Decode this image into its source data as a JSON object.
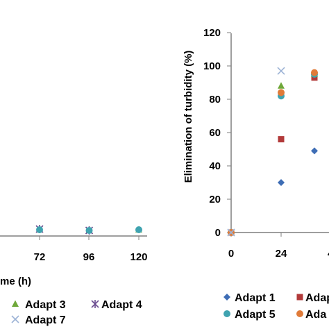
{
  "chart_data": [
    {
      "type": "scatter",
      "xlabel": "me (h)",
      "ylabel": "",
      "x_ticks": [
        "72",
        "96",
        "120"
      ],
      "xlim": [
        -24,
        130
      ],
      "ylim": [
        0,
        120
      ],
      "grid": false,
      "legend_placement": "bottom",
      "legend": [
        {
          "label": "Adapt 3",
          "marker": "triangle",
          "color": "#6fa83a"
        },
        {
          "label": "Adapt 4",
          "marker": "asterisk",
          "color": "#6a4b8f"
        },
        {
          "label": "Adapt 7",
          "marker": "x",
          "color": "#9db3d6"
        }
      ],
      "series": [
        {
          "key": "a3",
          "marker": "triangle",
          "color": "#6fa83a",
          "points": [
            [
              72,
              1
            ],
            [
              96,
              0.5
            ],
            [
              120,
              1
            ]
          ]
        },
        {
          "key": "a4",
          "marker": "asterisk",
          "color": "#6a4b8f",
          "points": [
            [
              72,
              1.5
            ],
            [
              96,
              0.5
            ]
          ]
        },
        {
          "key": "a5",
          "marker": "circle",
          "color": "#3fa3b0",
          "points": [
            [
              72,
              1
            ],
            [
              96,
              0.5
            ],
            [
              120,
              1
            ]
          ]
        }
      ]
    },
    {
      "type": "scatter",
      "xlabel": "",
      "ylabel": "Elimination of turbidity (%)",
      "y_ticks": [
        "0",
        "20",
        "40",
        "60",
        "80",
        "100",
        "120"
      ],
      "x_ticks": [
        "0",
        "24",
        "4"
      ],
      "ylim": [
        0,
        120
      ],
      "xlim": [
        0,
        48
      ],
      "grid": false,
      "legend_placement": "bottom",
      "legend": [
        {
          "label": "Adapt 1",
          "marker": "diamond",
          "color": "#3e6db5"
        },
        {
          "label": "Adap",
          "marker": "square",
          "color": "#b23a3a"
        },
        {
          "label": "Adapt 5",
          "marker": "circle",
          "color": "#3fa3b0"
        },
        {
          "label": "Ada",
          "marker": "circle",
          "color": "#e07b39"
        }
      ],
      "series": [
        {
          "key": "a1",
          "marker": "diamond",
          "color": "#3e6db5",
          "points": [
            [
              0,
              0
            ],
            [
              24,
              30
            ],
            [
              40,
              49
            ]
          ]
        },
        {
          "key": "a2",
          "marker": "square",
          "color": "#b23a3a",
          "points": [
            [
              0,
              0
            ],
            [
              24,
              56
            ],
            [
              40,
              93
            ]
          ]
        },
        {
          "key": "a3",
          "marker": "triangle",
          "color": "#6fa83a",
          "points": [
            [
              0,
              0
            ],
            [
              24,
              88
            ],
            [
              40,
              95
            ]
          ]
        },
        {
          "key": "a5",
          "marker": "circle",
          "color": "#3fa3b0",
          "points": [
            [
              0,
              0
            ],
            [
              24,
              82
            ],
            [
              40,
              95
            ]
          ]
        },
        {
          "key": "a6",
          "marker": "circle",
          "color": "#e07b39",
          "points": [
            [
              0,
              0
            ],
            [
              24,
              84
            ],
            [
              40,
              96
            ]
          ]
        },
        {
          "key": "a7",
          "marker": "x",
          "color": "#9db3d6",
          "points": [
            [
              0,
              0
            ],
            [
              24,
              97
            ]
          ]
        }
      ]
    }
  ]
}
